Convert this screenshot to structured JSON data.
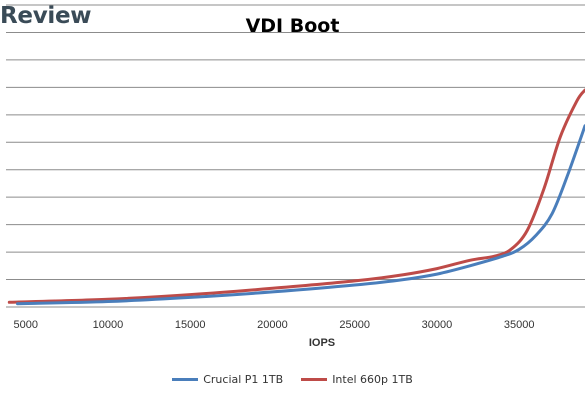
{
  "watermark": {
    "text": "Review"
  },
  "chart_data": {
    "type": "line",
    "title": "VDI Boot",
    "xlabel": "IOPS",
    "ylabel": "",
    "xlim": [
      3800,
      39000
    ],
    "ylim": [
      0,
      11
    ],
    "x_ticks": [
      5000,
      10000,
      15000,
      20000,
      25000,
      30000,
      35000
    ],
    "y_gridlines": [
      1,
      2,
      3,
      4,
      5,
      6,
      7,
      8,
      9,
      10,
      11
    ],
    "grid": true,
    "legend_position": "bottom",
    "series": [
      {
        "name": "Crucial P1 1TB",
        "color": "#4a7ebb",
        "x": [
          4500,
          10000,
          15000,
          20000,
          25000,
          28000,
          30000,
          32000,
          34000,
          35000,
          36000,
          37000,
          38000,
          39000
        ],
        "y": [
          0.12,
          0.2,
          0.35,
          0.55,
          0.8,
          1.0,
          1.2,
          1.5,
          1.85,
          2.1,
          2.6,
          3.4,
          4.9,
          6.6
        ]
      },
      {
        "name": "Intel 660p 1TB",
        "color": "#be4b48",
        "x": [
          4000,
          10000,
          15000,
          20000,
          25000,
          28000,
          30000,
          32000,
          33500,
          34500,
          35500,
          36500,
          37500,
          38500,
          39000
        ],
        "y": [
          0.17,
          0.28,
          0.45,
          0.68,
          0.95,
          1.18,
          1.4,
          1.7,
          1.85,
          2.1,
          2.8,
          4.3,
          6.2,
          7.5,
          7.9
        ]
      }
    ]
  }
}
